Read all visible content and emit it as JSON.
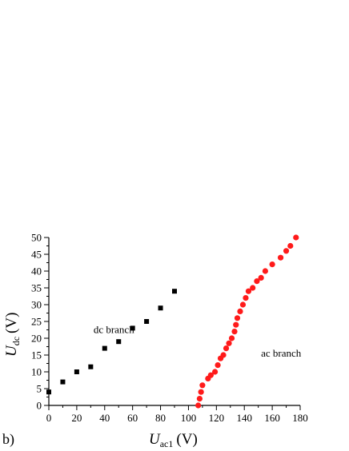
{
  "chart_data": {
    "type": "scatter",
    "panel_label": "b)",
    "xlabel": {
      "main": "U",
      "sub": "ac1",
      "unit": "(V)"
    },
    "ylabel": {
      "main": "U",
      "sub": "dc",
      "unit": "(V)"
    },
    "xlim": [
      0,
      180
    ],
    "ylim": [
      0,
      50
    ],
    "xticks": [
      0,
      20,
      40,
      60,
      80,
      100,
      120,
      140,
      160,
      180
    ],
    "yticks": [
      0,
      5,
      10,
      15,
      20,
      25,
      30,
      35,
      40,
      45,
      50
    ],
    "grid": false,
    "series": [
      {
        "name": "dc branch",
        "marker": "square",
        "color": "#000000",
        "points": [
          [
            0,
            4
          ],
          [
            10,
            7
          ],
          [
            20,
            10
          ],
          [
            30,
            11.5
          ],
          [
            40,
            17
          ],
          [
            50,
            19
          ],
          [
            60,
            23
          ],
          [
            70,
            25
          ],
          [
            80,
            29
          ],
          [
            90,
            34
          ]
        ]
      },
      {
        "name": "ac branch",
        "marker": "circle",
        "color": "#ff1a1a",
        "points": [
          [
            107,
            0
          ],
          [
            108,
            2
          ],
          [
            109,
            4
          ],
          [
            110,
            6
          ],
          [
            114,
            8
          ],
          [
            116,
            9
          ],
          [
            119,
            10
          ],
          [
            121,
            12
          ],
          [
            123,
            14
          ],
          [
            125,
            15
          ],
          [
            127,
            17
          ],
          [
            129,
            18.5
          ],
          [
            131,
            20
          ],
          [
            133,
            22
          ],
          [
            134,
            24
          ],
          [
            135,
            26
          ],
          [
            137,
            28
          ],
          [
            139,
            30
          ],
          [
            141,
            32
          ],
          [
            143,
            34
          ],
          [
            146,
            35
          ],
          [
            149,
            37
          ],
          [
            152,
            38
          ],
          [
            155,
            40
          ],
          [
            160,
            42
          ],
          [
            166,
            44
          ],
          [
            170,
            46
          ],
          [
            173,
            47.5
          ],
          [
            177,
            50
          ]
        ]
      }
    ],
    "annotations": [
      {
        "text": "dc branch",
        "x": 32,
        "y": 21.5,
        "color": "#000000"
      },
      {
        "text": "ac branch",
        "x": 152,
        "y": 14.5,
        "color": "#ff1a1a"
      }
    ]
  }
}
